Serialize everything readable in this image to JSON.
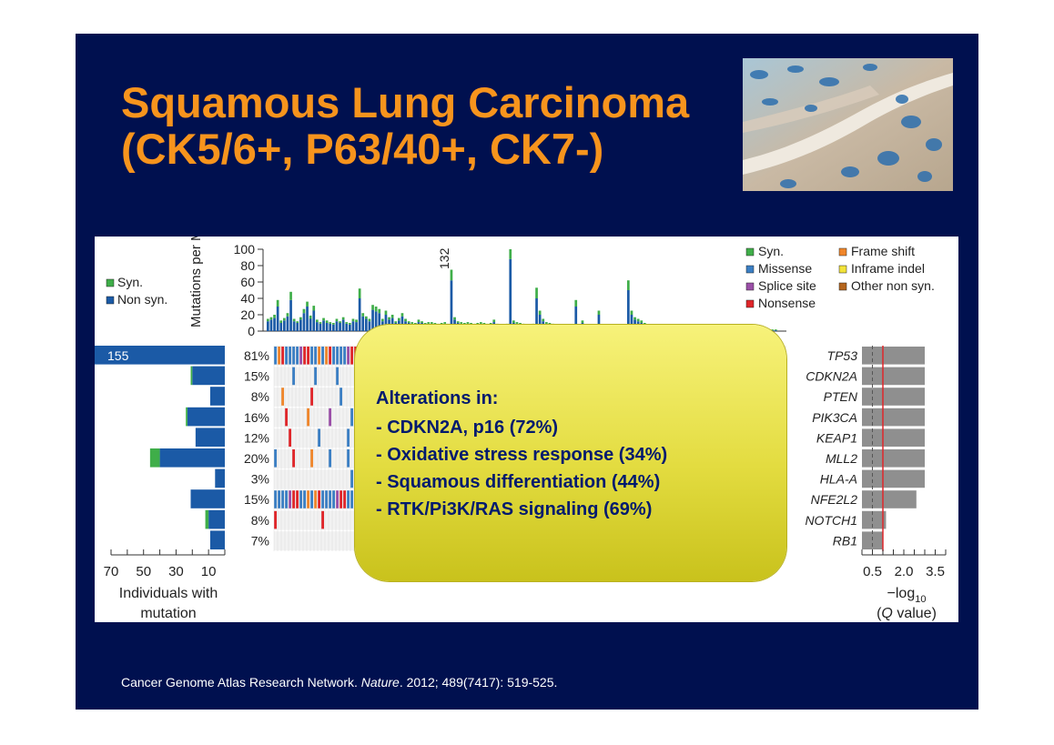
{
  "slide": {
    "title_line1": "Squamous Lung Carcinoma",
    "title_line2": "(CK5/6+, P63/40+, CK7-)",
    "citation_pre": "Cancer Genome Atlas Research Network. ",
    "citation_journal": "Nature",
    "citation_post": ". 2012; 489(7417): 519-525.",
    "colors": {
      "background": "#00104f",
      "title": "#f7941d",
      "callout": "#e8e247",
      "callout_text": "#001a6e"
    }
  },
  "callout": {
    "heading": "Alterations in:",
    "items": [
      "- CDKN2A, p16 (72%)",
      "- Oxidative stress response (34%)",
      "- Squamous differentiation (44%)",
      "- RTK/Pi3K/RAS signaling (69%)"
    ]
  },
  "chart_data": [
    {
      "type": "bar",
      "ylabel": "Mutations per Mb",
      "ylim": [
        0,
        100
      ],
      "yticks": [
        "0",
        "20",
        "40",
        "60",
        "80",
        "100"
      ],
      "annotation": "132",
      "legend": [
        "Syn.",
        "Non syn."
      ],
      "series_colors": {
        "Syn.": "#3fae49",
        "Non syn.": "#1b5aa6"
      },
      "samples_nonsyn": [
        12,
        14,
        16,
        30,
        10,
        13,
        18,
        38,
        12,
        10,
        14,
        22,
        30,
        15,
        25,
        11,
        9,
        13,
        10,
        9,
        8,
        12,
        10,
        14,
        9,
        8,
        12,
        11,
        40,
        18,
        15,
        12,
        26,
        24,
        22,
        12,
        20,
        14,
        16,
        10,
        13,
        18,
        12,
        10,
        9,
        8,
        11,
        10,
        8,
        9,
        9,
        8,
        7,
        8,
        9,
        7,
        62,
        14,
        10,
        9,
        8,
        9,
        8,
        7,
        8,
        9,
        8,
        7,
        8,
        11,
        7,
        6,
        6,
        7,
        88,
        10,
        9,
        8,
        7,
        6,
        6,
        7,
        40,
        20,
        12,
        9,
        8,
        7,
        6,
        6,
        5,
        6,
        5,
        5,
        30,
        6,
        10,
        5,
        6,
        5,
        5,
        20,
        6,
        5,
        4,
        5,
        4,
        4,
        5,
        4,
        50,
        20,
        14,
        12,
        10,
        8,
        6,
        5,
        5,
        5,
        4,
        4,
        3,
        3,
        3,
        3,
        3,
        3,
        2,
        2,
        2,
        2,
        2,
        2,
        2,
        2,
        2,
        2,
        2,
        2,
        2,
        2,
        2,
        2,
        1,
        1,
        1,
        1,
        1,
        1,
        1,
        1,
        1,
        1,
        1,
        1
      ],
      "samples_syn": [
        3,
        3,
        4,
        8,
        3,
        3,
        4,
        10,
        3,
        2,
        3,
        5,
        6,
        4,
        6,
        3,
        2,
        3,
        3,
        2,
        2,
        3,
        2,
        3,
        2,
        2,
        3,
        3,
        12,
        4,
        3,
        3,
        6,
        6,
        5,
        3,
        5,
        3,
        4,
        2,
        3,
        4,
        3,
        2,
        2,
        2,
        3,
        2,
        2,
        2,
        2,
        2,
        2,
        2,
        2,
        2,
        13,
        3,
        2,
        2,
        2,
        2,
        2,
        2,
        2,
        2,
        2,
        2,
        2,
        3,
        2,
        2,
        2,
        2,
        22,
        3,
        2,
        2,
        2,
        2,
        2,
        2,
        13,
        5,
        3,
        2,
        2,
        2,
        2,
        2,
        2,
        2,
        2,
        2,
        8,
        2,
        3,
        1,
        2,
        1,
        1,
        5,
        2,
        1,
        1,
        1,
        1,
        1,
        1,
        1,
        12,
        5,
        3,
        3,
        3,
        2,
        2,
        1,
        1,
        1,
        1,
        1,
        1,
        1,
        1,
        1,
        1,
        1,
        1,
        1,
        1,
        1,
        1,
        1,
        1,
        1,
        1,
        1,
        1,
        1,
        1,
        1,
        1,
        1,
        1,
        1,
        1,
        1,
        1,
        1,
        1,
        1,
        1,
        1,
        1,
        1
      ]
    },
    {
      "type": "bar",
      "orientation": "horizontal",
      "xlabel": "Individuals with mutation",
      "xlim": [
        0,
        70
      ],
      "xticks": [
        "70",
        "50",
        "30",
        "10"
      ],
      "categories": [
        "TP53",
        "CDKN2A",
        "PTEN",
        "PIK3CA",
        "KEAP1",
        "MLL2",
        "HLA-A",
        "NFE2L2",
        "NOTCH1",
        "RB1"
      ],
      "percent_labels": [
        "81%",
        "15%",
        "8%",
        "16%",
        "12%",
        "20%",
        "3%",
        "15%",
        "8%",
        "7%"
      ],
      "nonsyn": [
        155,
        20,
        9,
        23,
        18,
        40,
        6,
        21,
        10,
        9
      ],
      "syn": [
        0,
        1,
        0,
        1,
        0,
        6,
        0,
        0,
        2,
        0
      ],
      "value_label": "155"
    },
    {
      "type": "heatmap",
      "legend": [
        "Syn.",
        "Missense",
        "Splice site",
        "Nonsense",
        "Frame shift",
        "Inframe indel",
        "Other non syn."
      ],
      "legend_colors": {
        "Syn.": "#3fae49",
        "Missense": "#3b7fc4",
        "Splice site": "#9b4fa8",
        "Nonsense": "#e0262a",
        "Frame shift": "#f0862b",
        "Inframe indel": "#f2e33a",
        "Other non syn.": "#b5651d"
      }
    },
    {
      "type": "bar",
      "orientation": "horizontal",
      "xlabel": "−log10 (Q value)",
      "xticks": [
        "0.5",
        "2.0",
        "3.5"
      ],
      "xlim": [
        0,
        4.0
      ],
      "categories": [
        "TP53",
        "CDKN2A",
        "PTEN",
        "PIK3CA",
        "KEAP1",
        "MLL2",
        "HLA-A",
        "NFE2L2",
        "NOTCH1",
        "RB1"
      ],
      "values": [
        3.0,
        3.0,
        3.0,
        3.0,
        3.0,
        3.0,
        3.0,
        2.6,
        1.15,
        1.0
      ],
      "threshold": 1.0
    }
  ]
}
